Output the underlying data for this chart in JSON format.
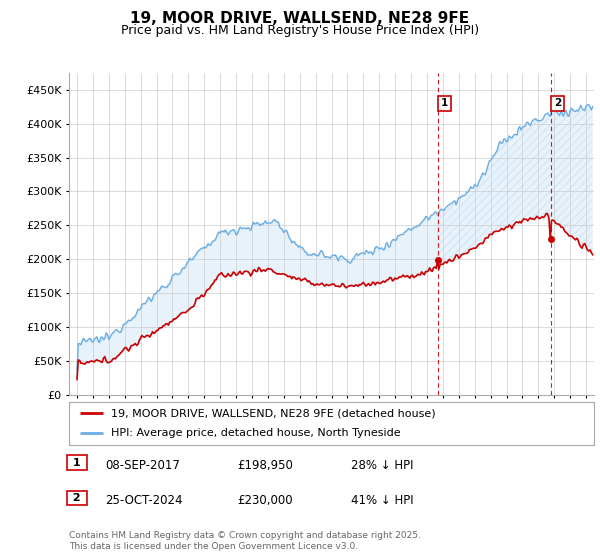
{
  "title": "19, MOOR DRIVE, WALLSEND, NE28 9FE",
  "subtitle": "Price paid vs. HM Land Registry's House Price Index (HPI)",
  "title_fontsize": 11,
  "subtitle_fontsize": 9,
  "ylim": [
    0,
    475000
  ],
  "yticks": [
    0,
    50000,
    100000,
    150000,
    200000,
    250000,
    300000,
    350000,
    400000,
    450000
  ],
  "ytick_labels": [
    "£0",
    "£50K",
    "£100K",
    "£150K",
    "£200K",
    "£250K",
    "£300K",
    "£350K",
    "£400K",
    "£450K"
  ],
  "hpi_color": "#6aade4",
  "price_color": "#cc0000",
  "sale1_x": 2017.67,
  "sale1_price": 198950,
  "sale1_hpi_pct": 28,
  "sale1_date": "08-SEP-2017",
  "sale2_x": 2024.79,
  "sale2_price": 230000,
  "sale2_hpi_pct": 41,
  "sale2_date": "25-OCT-2024",
  "legend_label1": "19, MOOR DRIVE, WALLSEND, NE28 9FE (detached house)",
  "legend_label2": "HPI: Average price, detached house, North Tyneside",
  "footnote1": "Contains HM Land Registry data © Crown copyright and database right 2025.",
  "footnote2": "This data is licensed under the Open Government Licence v3.0.",
  "background_color": "#ffffff",
  "grid_color": "#cccccc",
  "xmin": 1994.5,
  "xmax": 2027.5
}
